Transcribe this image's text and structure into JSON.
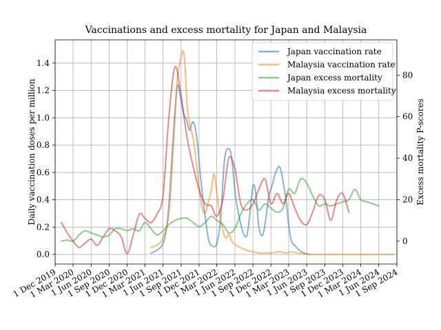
{
  "chart_data": {
    "type": "line",
    "title": "Vaccinations and excess mortality for Japan and Malaysia",
    "ylabel_left": "Daily vaccination doses per million",
    "ylabel_right": "Excess mortality P-scores",
    "xlim": [
      "2019-12-01",
      "2024-09-01"
    ],
    "ylim_left": [
      -0.07,
      1.57
    ],
    "ylim_right": [
      -11,
      97
    ],
    "grid": true,
    "legend_placement": "top-right",
    "x_tick_labels": [
      "1 Dec 2019",
      "1 Mar 2020",
      "1 Jun 2020",
      "1 Sep 2020",
      "1 Dec 2020",
      "1 Mar 2021",
      "1 Jun 2021",
      "1 Sep 2021",
      "1 Dec 2021",
      "1 Mar 2022",
      "1 Jun 2022",
      "1 Sep 2022",
      "1 Dec 2022",
      "1 Mar 2023",
      "1 Jun 2023",
      "1 Sep 2023",
      "1 Dec 2023",
      "1 Mar 2024",
      "1 Jun 2024",
      "1 Sep 2024"
    ],
    "x_tick_dates": [
      "2019-12-01",
      "2020-03-01",
      "2020-06-01",
      "2020-09-01",
      "2020-12-01",
      "2021-03-01",
      "2021-06-01",
      "2021-09-01",
      "2021-12-01",
      "2022-03-01",
      "2022-06-01",
      "2022-09-01",
      "2022-12-01",
      "2023-03-01",
      "2023-06-01",
      "2023-09-01",
      "2023-12-01",
      "2024-03-01",
      "2024-06-01",
      "2024-09-01"
    ],
    "y_left_ticks": [
      "0.0",
      "0.2",
      "0.4",
      "0.6",
      "0.8",
      "1.0",
      "1.2",
      "1.4"
    ],
    "y_left_tick_values": [
      0,
      0.2,
      0.4,
      0.6,
      0.8,
      1.0,
      1.2,
      1.4
    ],
    "y_right_ticks": [
      "0",
      "20",
      "40",
      "60",
      "80"
    ],
    "y_right_tick_values": [
      0,
      20,
      40,
      60,
      80
    ],
    "series": [
      {
        "name": "Japan vaccination rate",
        "axis": "left",
        "color": "#1f77b4",
        "x": [
          "2021-04-01",
          "2021-05-01",
          "2021-06-01",
          "2021-06-20",
          "2021-07-05",
          "2021-07-20",
          "2021-08-01",
          "2021-08-15",
          "2021-09-01",
          "2021-09-15",
          "2021-09-25",
          "2021-10-05",
          "2021-10-15",
          "2021-11-01",
          "2021-11-20",
          "2021-12-10",
          "2022-01-01",
          "2022-01-20",
          "2022-02-10",
          "2022-03-01",
          "2022-03-20",
          "2022-04-10",
          "2022-05-05",
          "2022-05-20",
          "2022-06-05",
          "2022-06-25",
          "2022-07-15",
          "2022-08-01",
          "2022-08-15",
          "2022-09-01",
          "2022-09-15",
          "2022-10-01",
          "2022-10-20",
          "2022-11-05",
          "2022-11-20",
          "2022-12-10",
          "2022-12-25",
          "2023-01-15",
          "2023-02-05",
          "2023-02-20",
          "2023-03-01",
          "2023-03-15",
          "2023-04-05",
          "2023-04-25",
          "2023-05-20",
          "2023-06-15"
        ],
        "y": [
          0.01,
          0.03,
          0.08,
          0.2,
          0.45,
          0.8,
          1.05,
          1.24,
          1.12,
          1.02,
          1.0,
          0.95,
          0.91,
          0.97,
          0.85,
          0.55,
          0.28,
          0.1,
          0.06,
          0.08,
          0.25,
          0.7,
          0.77,
          0.65,
          0.42,
          0.26,
          0.15,
          0.14,
          0.28,
          0.5,
          0.45,
          0.2,
          0.14,
          0.26,
          0.42,
          0.52,
          0.6,
          0.64,
          0.5,
          0.35,
          0.22,
          0.1,
          0.06,
          0.03,
          0.01,
          0.0
        ]
      },
      {
        "name": "Malaysia vaccination rate",
        "axis": "left",
        "color": "#ff7f0e",
        "x": [
          "2021-04-01",
          "2021-05-01",
          "2021-06-01",
          "2021-07-01",
          "2021-07-20",
          "2021-08-01",
          "2021-08-10",
          "2021-08-20",
          "2021-09-01",
          "2021-09-10",
          "2021-09-20",
          "2021-10-01",
          "2021-10-15",
          "2021-11-01",
          "2021-11-15",
          "2021-12-01",
          "2021-12-15",
          "2022-01-01",
          "2022-01-15",
          "2022-02-01",
          "2022-02-15",
          "2022-03-01",
          "2022-03-15",
          "2022-04-01",
          "2022-04-15",
          "2022-05-01",
          "2022-05-15",
          "2022-06-01",
          "2022-06-15",
          "2022-07-01",
          "2022-08-01",
          "2022-09-01",
          "2022-10-01",
          "2022-11-01",
          "2022-12-01",
          "2023-01-15",
          "2023-02-15",
          "2023-03-15",
          "2023-04-15",
          "2023-06-15",
          "2023-09-01",
          "2023-12-01",
          "2024-03-01",
          "2024-06-01",
          "2024-08-15"
        ],
        "y": [
          0.05,
          0.07,
          0.12,
          0.3,
          0.7,
          1.0,
          1.25,
          1.36,
          1.45,
          1.49,
          1.4,
          1.1,
          0.95,
          0.85,
          0.7,
          0.5,
          0.35,
          0.3,
          0.37,
          0.47,
          0.59,
          0.45,
          0.3,
          0.18,
          0.12,
          0.15,
          0.1,
          0.07,
          0.06,
          0.05,
          0.03,
          0.02,
          0.01,
          0.01,
          0.01,
          0.02,
          0.01,
          0.02,
          0.01,
          0.0,
          0.0,
          0.0,
          0.0,
          0.0,
          0.0
        ]
      },
      {
        "name": "Japan excess mortality",
        "axis": "right",
        "color": "#2ca02c",
        "x": [
          "2020-01-01",
          "2020-02-01",
          "2020-03-01",
          "2020-04-01",
          "2020-05-01",
          "2020-06-01",
          "2020-07-01",
          "2020-08-01",
          "2020-09-01",
          "2020-10-01",
          "2020-11-01",
          "2020-12-01",
          "2021-01-01",
          "2021-02-01",
          "2021-03-01",
          "2021-04-01",
          "2021-05-01",
          "2021-06-01",
          "2021-07-01",
          "2021-08-01",
          "2021-09-01",
          "2021-10-01",
          "2021-11-01",
          "2021-12-01",
          "2022-01-01",
          "2022-02-01",
          "2022-03-01",
          "2022-04-01",
          "2022-05-01",
          "2022-06-01",
          "2022-07-01",
          "2022-08-01",
          "2022-09-01",
          "2022-10-01",
          "2022-11-01",
          "2022-12-01",
          "2023-01-01",
          "2023-02-01",
          "2023-03-01",
          "2023-04-01",
          "2023-05-01",
          "2023-06-01",
          "2023-07-01",
          "2023-08-01",
          "2023-09-01",
          "2023-10-01",
          "2023-11-01",
          "2023-12-01",
          "2024-01-01",
          "2024-02-01",
          "2024-03-01",
          "2024-04-01",
          "2024-05-01",
          "2024-06-01"
        ],
        "y": [
          0,
          0.5,
          0,
          3,
          5,
          4,
          3,
          2,
          3,
          6,
          6,
          5,
          6,
          5,
          9,
          6,
          3,
          5,
          8,
          10,
          11,
          11,
          9,
          7,
          9,
          12,
          10,
          8,
          4,
          6,
          13,
          18,
          20,
          15,
          18,
          16,
          14,
          16,
          25,
          23,
          30,
          28,
          22,
          17,
          18,
          17,
          18,
          19,
          20,
          25,
          20,
          19,
          18,
          17
        ]
      },
      {
        "name": "Malaysia excess mortality",
        "axis": "right",
        "color": "#d62728",
        "x": [
          "2020-01-01",
          "2020-02-01",
          "2020-03-01",
          "2020-04-01",
          "2020-05-01",
          "2020-06-01",
          "2020-07-01",
          "2020-08-01",
          "2020-09-01",
          "2020-10-01",
          "2020-11-01",
          "2020-12-01",
          "2021-01-01",
          "2021-02-01",
          "2021-03-01",
          "2021-04-01",
          "2021-05-01",
          "2021-06-01",
          "2021-07-01",
          "2021-08-01",
          "2021-09-01",
          "2021-10-01",
          "2021-11-01",
          "2021-12-01",
          "2022-01-01",
          "2022-02-01",
          "2022-03-01",
          "2022-04-01",
          "2022-05-01",
          "2022-06-01",
          "2022-07-01",
          "2022-08-01",
          "2022-09-01",
          "2022-10-01",
          "2022-11-01",
          "2022-12-01",
          "2023-01-01",
          "2023-02-01",
          "2023-03-01",
          "2023-04-01",
          "2023-05-01",
          "2023-06-01",
          "2023-07-01",
          "2023-08-01",
          "2023-09-01",
          "2023-10-01",
          "2023-11-01",
          "2023-12-01",
          "2024-01-01"
        ],
        "y": [
          9,
          4,
          0,
          -3,
          -1,
          1,
          -2,
          2,
          6,
          5,
          2,
          -6,
          3,
          13,
          11,
          9,
          13,
          22,
          60,
          84,
          70,
          50,
          36,
          25,
          18,
          17,
          12,
          20,
          40,
          35,
          18,
          15,
          18,
          25,
          30,
          18,
          23,
          18,
          23,
          16,
          10,
          8,
          14,
          22,
          20,
          10,
          20,
          23,
          14
        ]
      }
    ]
  }
}
